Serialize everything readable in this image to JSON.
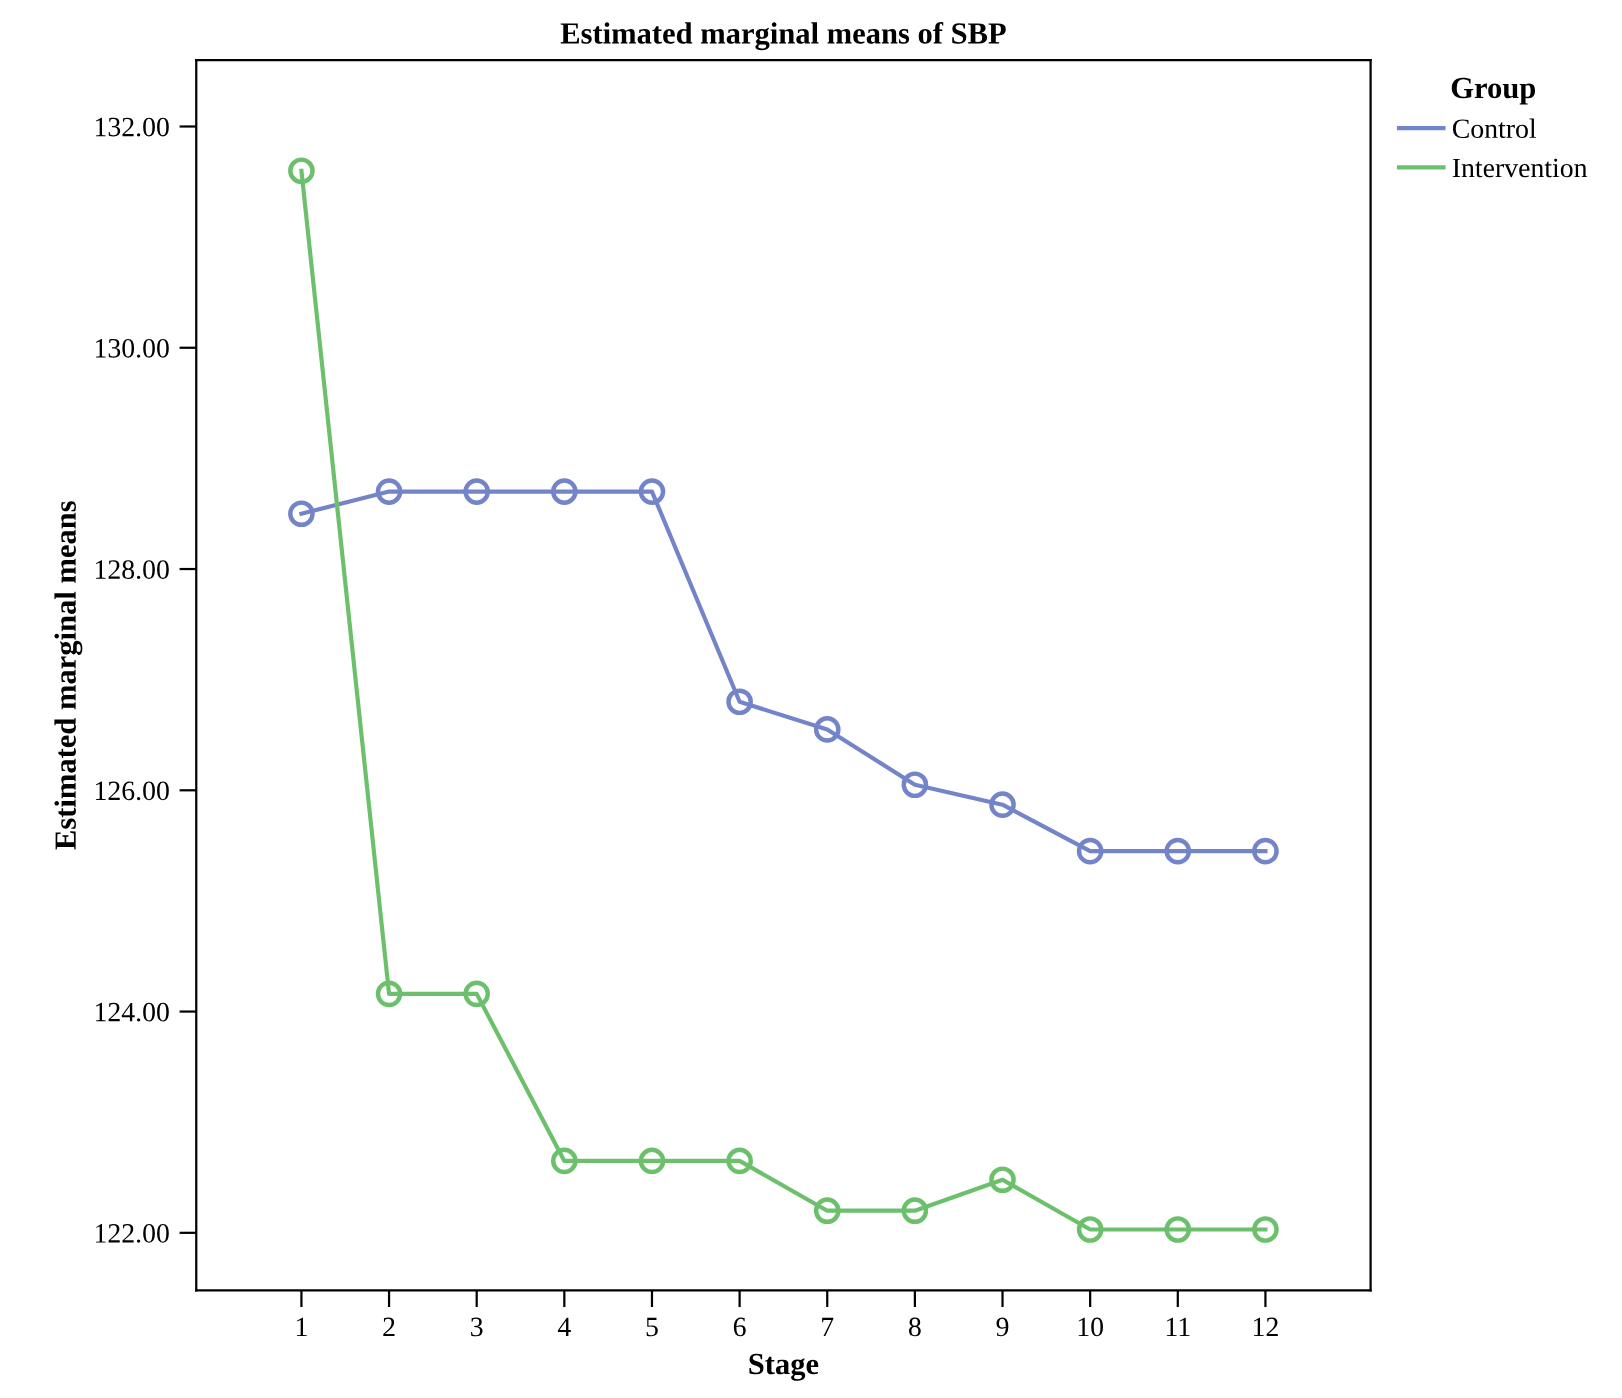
{
  "chart_data": {
    "type": "line",
    "title": "Estimated marginal means of SBP",
    "xlabel": "Stage",
    "ylabel": "Estimated marginal means",
    "legend_title": "Group",
    "legend": "right",
    "marker": "circle",
    "line_style": "solid",
    "grid": false,
    "x": [
      1,
      2,
      3,
      4,
      5,
      6,
      7,
      8,
      9,
      10,
      11,
      12
    ],
    "xlim": [
      -0.2,
      13.2
    ],
    "xticks": [
      1,
      2,
      3,
      4,
      5,
      6,
      7,
      8,
      9,
      10,
      11,
      12
    ],
    "ylim": [
      121.48,
      132.6
    ],
    "yticks": [
      {
        "value": 122,
        "label": "122.00"
      },
      {
        "value": 124,
        "label": "124.00"
      },
      {
        "value": 126,
        "label": "126.00"
      },
      {
        "value": 128,
        "label": "128.00"
      },
      {
        "value": 130,
        "label": "130.00"
      },
      {
        "value": 132,
        "label": "132.00"
      }
    ],
    "series": [
      {
        "name": "Control",
        "color": "#7384c9",
        "values": [
          128.5,
          128.7,
          128.7,
          128.7,
          128.7,
          126.8,
          126.55,
          126.05,
          125.87,
          125.45,
          125.45,
          125.45
        ]
      },
      {
        "name": "Intervention",
        "color": "#6cc06c",
        "values": [
          131.6,
          124.16,
          124.16,
          122.65,
          122.65,
          122.65,
          122.2,
          122.2,
          122.48,
          122.03,
          122.03,
          122.03
        ]
      }
    ]
  }
}
